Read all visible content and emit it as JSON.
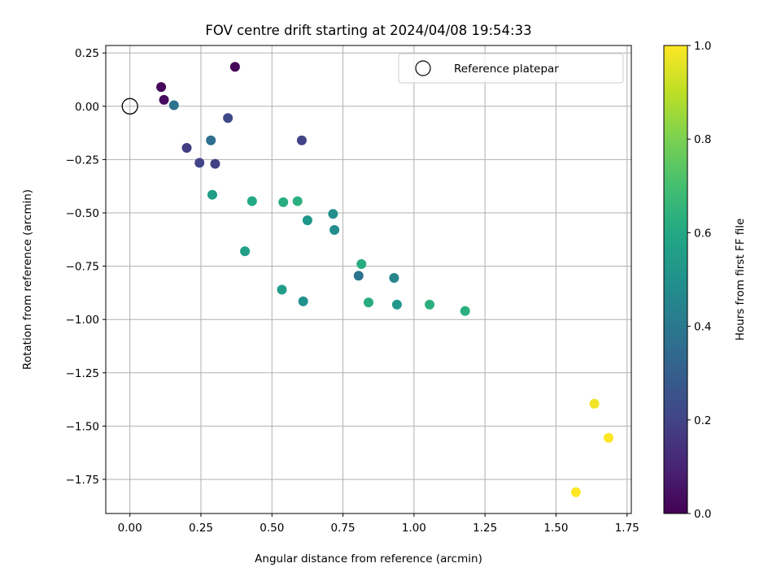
{
  "chart_data": {
    "type": "scatter",
    "title": "FOV centre drift starting at 2024/04/08 19:54:33",
    "xlabel": "Angular distance from reference (arcmin)",
    "ylabel": "Rotation from reference (arcmin)",
    "xlim": [
      -0.085,
      1.765
    ],
    "ylim": [
      -1.91,
      0.285
    ],
    "xticks": [
      "0.00",
      "0.25",
      "0.50",
      "0.75",
      "1.00",
      "1.25",
      "1.50",
      "1.75"
    ],
    "xtick_values": [
      0,
      0.25,
      0.5,
      0.75,
      1.0,
      1.25,
      1.5,
      1.75
    ],
    "yticks": [
      "0.25",
      "0.00",
      "−0.25",
      "−0.50",
      "−0.75",
      "−1.00",
      "−1.25",
      "−1.50",
      "−1.75"
    ],
    "ytick_values": [
      0.25,
      0,
      -0.25,
      -0.5,
      -0.75,
      -1.0,
      -1.25,
      -1.5,
      -1.75
    ],
    "grid": true,
    "legend": {
      "position": "top-right",
      "entries": [
        "Reference platepar"
      ]
    },
    "reference_point": {
      "x": 0,
      "y": 0
    },
    "colorbar": {
      "label": "Hours from first FF file",
      "range": [
        0.0,
        1.0
      ],
      "ticks": [
        "0.0",
        "0.2",
        "0.4",
        "0.6",
        "0.8",
        "1.0"
      ],
      "tick_values": [
        0,
        0.2,
        0.4,
        0.6,
        0.8,
        1.0
      ],
      "colormap": "viridis"
    },
    "points": [
      {
        "x": 0.11,
        "y": 0.09,
        "c": 0.02
      },
      {
        "x": 0.12,
        "y": 0.03,
        "c": 0.03
      },
      {
        "x": 0.37,
        "y": 0.185,
        "c": 0.01
      },
      {
        "x": 0.155,
        "y": 0.005,
        "c": 0.38
      },
      {
        "x": 0.345,
        "y": -0.055,
        "c": 0.22
      },
      {
        "x": 0.2,
        "y": -0.195,
        "c": 0.18
      },
      {
        "x": 0.285,
        "y": -0.16,
        "c": 0.36
      },
      {
        "x": 0.245,
        "y": -0.265,
        "c": 0.2
      },
      {
        "x": 0.3,
        "y": -0.27,
        "c": 0.19
      },
      {
        "x": 0.605,
        "y": -0.16,
        "c": 0.2
      },
      {
        "x": 0.29,
        "y": -0.415,
        "c": 0.55
      },
      {
        "x": 0.43,
        "y": -0.445,
        "c": 0.6
      },
      {
        "x": 0.54,
        "y": -0.45,
        "c": 0.62
      },
      {
        "x": 0.59,
        "y": -0.445,
        "c": 0.63
      },
      {
        "x": 0.625,
        "y": -0.535,
        "c": 0.52
      },
      {
        "x": 0.715,
        "y": -0.505,
        "c": 0.49
      },
      {
        "x": 0.72,
        "y": -0.58,
        "c": 0.48
      },
      {
        "x": 0.405,
        "y": -0.68,
        "c": 0.56
      },
      {
        "x": 0.815,
        "y": -0.74,
        "c": 0.62
      },
      {
        "x": 0.805,
        "y": -0.795,
        "c": 0.38
      },
      {
        "x": 0.93,
        "y": -0.805,
        "c": 0.45
      },
      {
        "x": 0.535,
        "y": -0.86,
        "c": 0.55
      },
      {
        "x": 0.61,
        "y": -0.915,
        "c": 0.5
      },
      {
        "x": 0.84,
        "y": -0.92,
        "c": 0.62
      },
      {
        "x": 0.94,
        "y": -0.93,
        "c": 0.52
      },
      {
        "x": 1.055,
        "y": -0.93,
        "c": 0.63
      },
      {
        "x": 1.18,
        "y": -0.96,
        "c": 0.63
      },
      {
        "x": 1.635,
        "y": -1.395,
        "c": 0.98
      },
      {
        "x": 1.685,
        "y": -1.555,
        "c": 1.0
      },
      {
        "x": 1.57,
        "y": -1.81,
        "c": 1.0
      }
    ]
  }
}
